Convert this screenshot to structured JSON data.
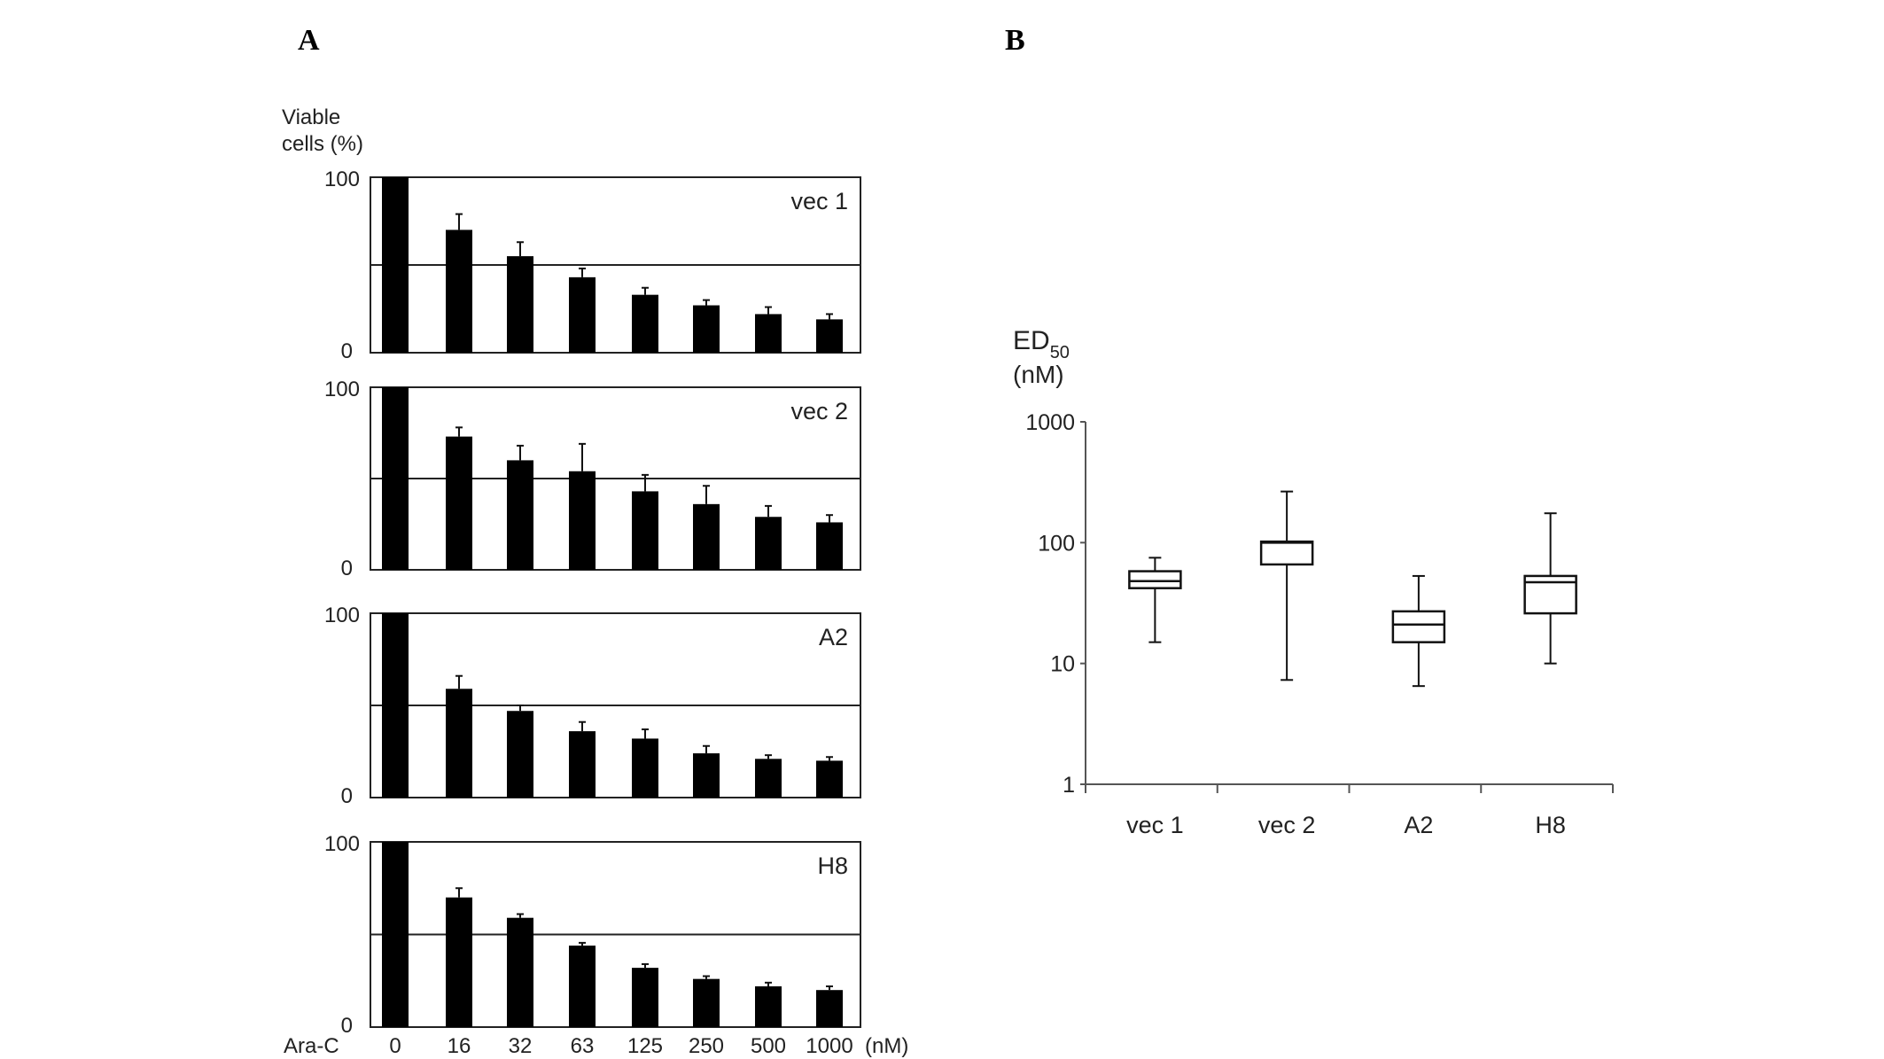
{
  "chart_data": [
    {
      "type": "bar",
      "panel_label": "A",
      "ylabel_line1": "Viable",
      "ylabel_line2": "cells (%)",
      "xlabel_prefix": "Ara-C",
      "xlabel_unit": "(nM)",
      "categories": [
        "0",
        "16",
        "32",
        "63",
        "125",
        "250",
        "500",
        "1000"
      ],
      "ylim": [
        0,
        100
      ],
      "yticks": [
        "0",
        "100"
      ],
      "reference_line": 50,
      "panels": [
        {
          "name": "vec 1",
          "values": [
            100,
            70,
            55,
            43,
            33,
            27,
            22,
            19
          ],
          "errors": [
            0,
            9,
            8,
            5,
            4,
            3,
            4,
            3
          ]
        },
        {
          "name": "vec 2",
          "values": [
            100,
            73,
            60,
            54,
            43,
            36,
            29,
            26
          ],
          "errors": [
            0,
            5,
            8,
            15,
            9,
            10,
            6,
            4
          ]
        },
        {
          "name": "A2",
          "values": [
            100,
            59,
            47,
            36,
            32,
            24,
            21,
            20
          ],
          "errors": [
            0,
            7,
            3,
            5,
            5,
            4,
            2,
            2
          ]
        },
        {
          "name": "H8",
          "values": [
            100,
            70,
            59,
            44,
            32,
            26,
            22,
            20
          ],
          "errors": [
            0,
            5,
            2,
            1.5,
            2,
            1.5,
            2,
            2
          ]
        }
      ]
    },
    {
      "type": "box",
      "panel_label": "B",
      "ylabel_main": "ED",
      "ylabel_sub": "50",
      "ylabel_unit": "(nM)",
      "yscale": "log",
      "ylim": [
        1,
        1000
      ],
      "yticks": [
        "1",
        "10",
        "100",
        "1000"
      ],
      "categories": [
        "vec 1",
        "vec 2",
        "A2",
        "H8"
      ],
      "boxes": [
        {
          "min": 15,
          "q1": 42,
          "median": 48,
          "q3": 58,
          "max": 75
        },
        {
          "min": 7.3,
          "q1": 66,
          "median": 100,
          "q3": 102,
          "max": 265
        },
        {
          "min": 6.5,
          "q1": 15,
          "median": 21,
          "q3": 27,
          "max": 53
        },
        {
          "min": 10,
          "q1": 26,
          "median": 47,
          "q3": 53,
          "max": 175
        }
      ]
    }
  ]
}
